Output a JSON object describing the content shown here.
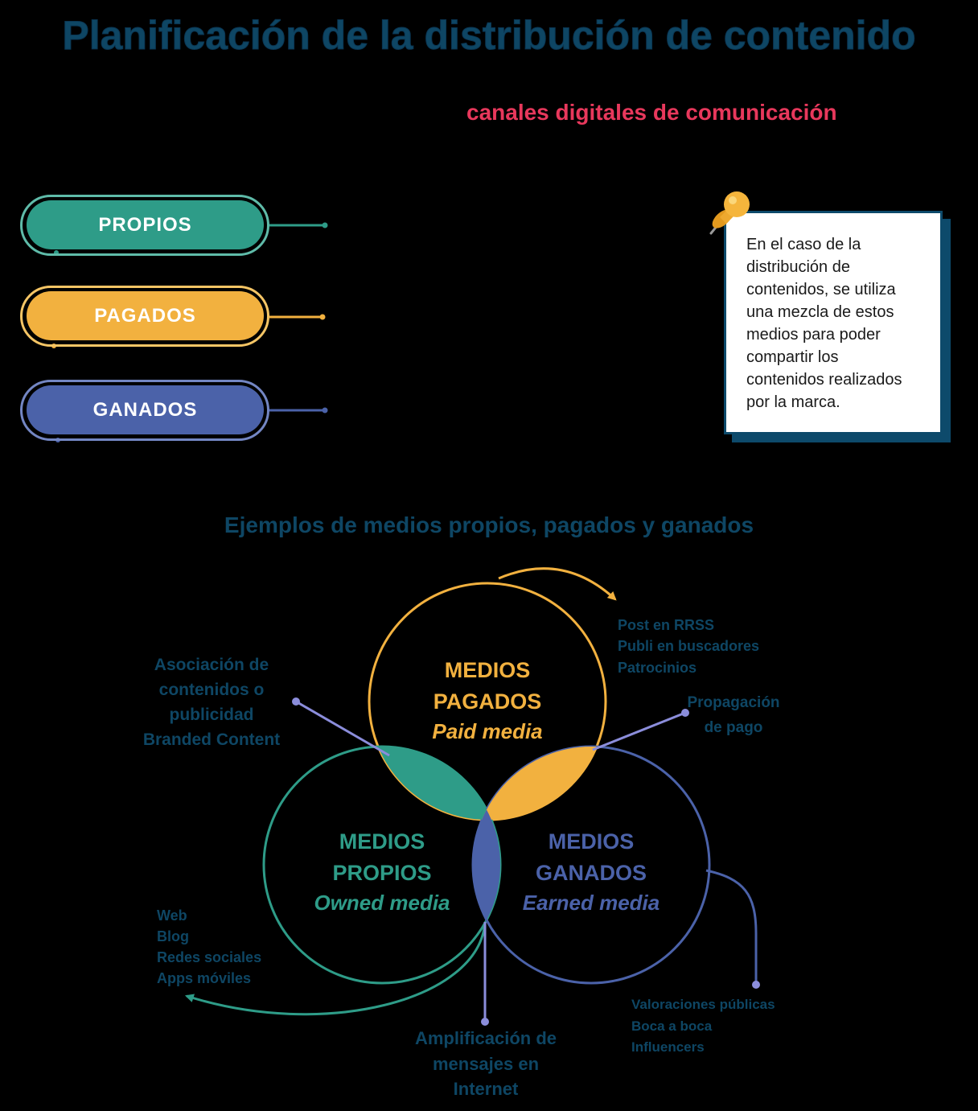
{
  "title": "Planificación de la distribución de contenido",
  "intro": {
    "highlight": "canales digitales de comunicación"
  },
  "media_types": [
    {
      "label": "PROPIOS",
      "color": "#2e9c88"
    },
    {
      "label": "PAGADOS",
      "color": "#f2b13f"
    },
    {
      "label": "GANADOS",
      "color": "#4b62a9"
    }
  ],
  "note": {
    "icon": "pushpin-icon",
    "lines": [
      "En el caso de la",
      "distribución de",
      "contenidos, se utiliza",
      "una mezcla de estos",
      "medios para poder",
      "compartir los",
      "contenidos realizados",
      "por la marca."
    ]
  },
  "venn": {
    "title": "Ejemplos de medios propios, pagados y ganados",
    "paid": {
      "line1": "MEDIOS",
      "line2": "PAGADOS",
      "english": "Paid media",
      "color": "#f2b13f"
    },
    "owned": {
      "line1": "MEDIOS",
      "line2": "PROPIOS",
      "english": "Owned media",
      "color": "#2e9c88"
    },
    "earned": {
      "line1": "MEDIOS",
      "line2": "GANADOS",
      "english": "Earned media",
      "color": "#4b62a9"
    },
    "paid_examples": [
      "Post en RRSS",
      "Publi en buscadores",
      "Patrocinios"
    ],
    "paid_owned_overlap": [
      "Asociación de",
      "contenidos o",
      "publicidad",
      "Branded Content"
    ],
    "paid_earned_overlap": [
      "Propagación",
      "de pago"
    ],
    "owned_examples": [
      "Web",
      "Blog",
      "Redes sociales",
      "Apps móviles"
    ],
    "owned_earned_overlap": [
      "Amplificación de",
      "mensajes en",
      "Internet"
    ],
    "earned_examples": [
      "Valoraciones públicas",
      "Boca a boca",
      "Influencers"
    ]
  },
  "colors": {
    "navy": "#0e4664",
    "highlight": "#e8385c",
    "connector": "#8b8ddb",
    "background": "#000000"
  }
}
